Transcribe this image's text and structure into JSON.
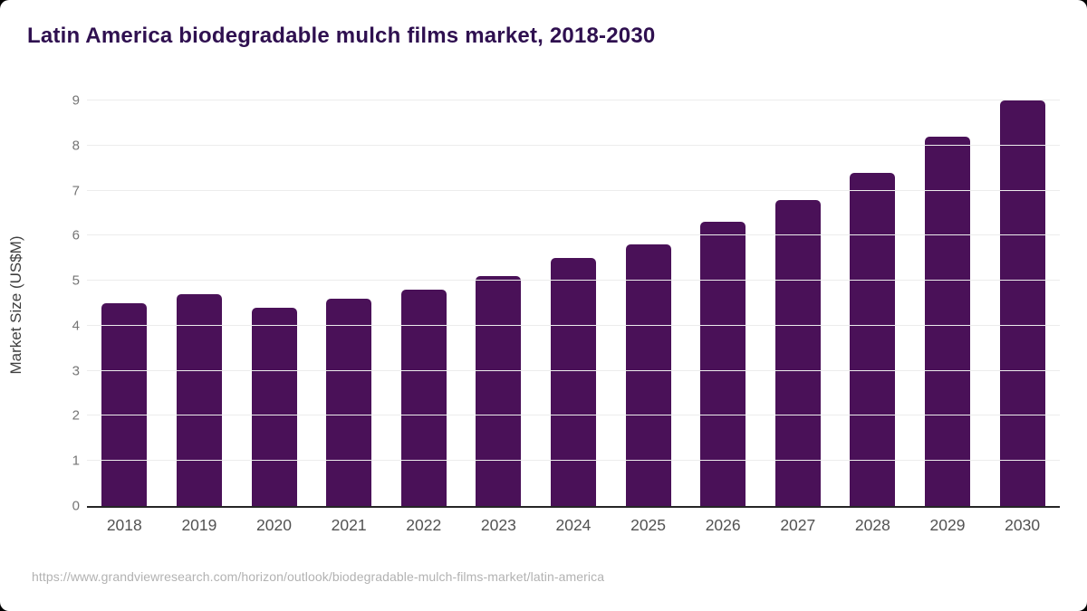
{
  "header": {
    "title": "Latin America biodegradable mulch films market, 2018-2030",
    "title_color": "#2f1050"
  },
  "chart_data": {
    "type": "bar",
    "title": "Latin America biodegradable mulch films market, 2018-2030",
    "categories": [
      "2018",
      "2019",
      "2020",
      "2021",
      "2022",
      "2023",
      "2024",
      "2025",
      "2026",
      "2027",
      "2028",
      "2029",
      "2030"
    ],
    "values": [
      4.5,
      4.7,
      4.4,
      4.6,
      4.8,
      5.1,
      5.5,
      5.8,
      6.3,
      6.8,
      7.4,
      8.2,
      9.0
    ],
    "xlabel": "",
    "ylabel": "Market Size (US$M)",
    "ylim": [
      0,
      9
    ],
    "yticks": [
      0,
      1,
      2,
      3,
      4,
      5,
      6,
      7,
      8,
      9
    ],
    "grid": true,
    "legend": false,
    "bar_color": "#4a1158",
    "gridline_color": "#ececec",
    "axis_line_color": "#262626"
  },
  "footer": {
    "source_url": "https://www.grandviewresearch.com/horizon/outlook/biodegradable-mulch-films-market/latin-america"
  }
}
